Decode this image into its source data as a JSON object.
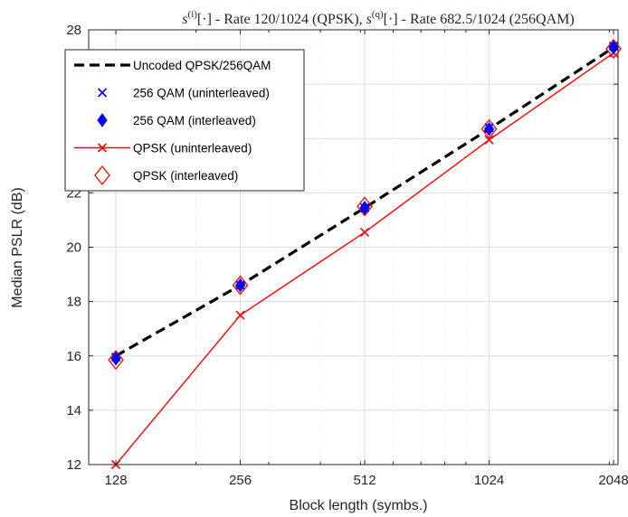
{
  "chart_data": {
    "type": "line",
    "title": {
      "s_i": "s",
      "s_i_sup": "(i)",
      "part1": "[·] - Rate 120/1024 (QPSK), ",
      "s_q": "s",
      "s_q_sup": "(q)",
      "part2": "[·] - Rate 682.5/1024 (256QAM)"
    },
    "xlabel": "Block length (symbs.)",
    "ylabel": "Median PSLR (dB)",
    "x_scale": "log2",
    "x": [
      128,
      256,
      512,
      1024,
      2048
    ],
    "x_tick_labels": [
      "128",
      "256",
      "512",
      "1024",
      "2048"
    ],
    "xlim": [
      110,
      2100
    ],
    "ylim": [
      12,
      28
    ],
    "y_ticks": [
      12,
      14,
      16,
      18,
      20,
      22,
      24,
      26,
      28
    ],
    "grid": "on (major and minor)",
    "legend_placement": "top-left",
    "series": [
      {
        "name": "Uncoded QPSK/256QAM",
        "values": [
          16.0,
          18.6,
          21.45,
          24.35,
          27.35
        ],
        "color": "#000000",
        "style": "dashed",
        "marker": "none"
      },
      {
        "name": "256 QAM (uninterleaved)",
        "values": [
          15.95,
          18.6,
          21.45,
          24.4,
          27.4
        ],
        "color": "#0000ff",
        "style": "none",
        "marker": "x"
      },
      {
        "name": "256 QAM (interleaved)",
        "values": [
          15.9,
          18.6,
          21.45,
          24.35,
          27.35
        ],
        "color": "#0000ff",
        "style": "none",
        "marker": "filled-diamond"
      },
      {
        "name": "QPSK (uninterleaved)",
        "values": [
          12.0,
          17.5,
          20.55,
          23.95,
          27.15
        ],
        "color": "#ff0000",
        "style": "solid",
        "marker": "x"
      },
      {
        "name": "QPSK (interleaved)",
        "values": [
          15.85,
          18.6,
          21.5,
          24.35,
          27.3
        ],
        "color": "#ff0000",
        "style": "none",
        "marker": "open-diamond"
      }
    ]
  }
}
